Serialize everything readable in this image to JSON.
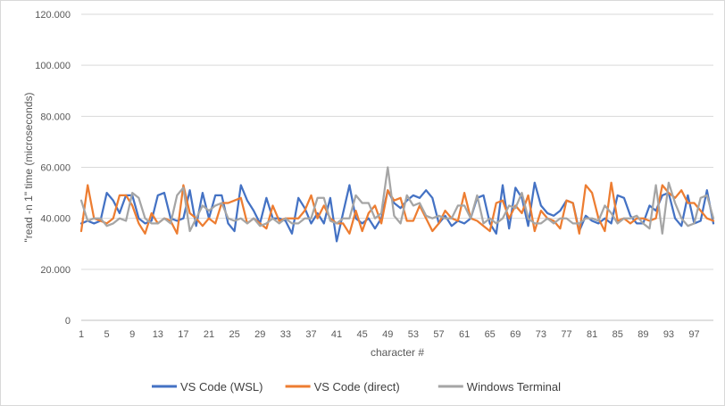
{
  "chart_data": {
    "type": "line",
    "xlabel": "character #",
    "ylabel": "\"read -n 1\" time (microseconds)",
    "ylim": [
      0,
      120000
    ],
    "yticks": [
      "0",
      "20.000",
      "40.000",
      "60.000",
      "80.000",
      "100.000",
      "120.000"
    ],
    "ytick_values": [
      0,
      20000,
      40000,
      60000,
      80000,
      100000,
      120000
    ],
    "x": [
      1,
      2,
      3,
      4,
      5,
      6,
      7,
      8,
      9,
      10,
      11,
      12,
      13,
      14,
      15,
      16,
      17,
      18,
      19,
      20,
      21,
      22,
      23,
      24,
      25,
      26,
      27,
      28,
      29,
      30,
      31,
      32,
      33,
      34,
      35,
      36,
      37,
      38,
      39,
      40,
      41,
      42,
      43,
      44,
      45,
      46,
      47,
      48,
      49,
      50,
      51,
      52,
      53,
      54,
      55,
      56,
      57,
      58,
      59,
      60,
      61,
      62,
      63,
      64,
      65,
      66,
      67,
      68,
      69,
      70,
      71,
      72,
      73,
      74,
      75,
      76,
      77,
      78,
      79,
      80,
      81,
      82,
      83,
      84,
      85,
      86,
      87,
      88,
      89,
      90,
      91,
      92,
      93,
      94,
      95,
      96,
      97,
      98,
      99,
      100
    ],
    "xticks": [
      1,
      5,
      9,
      13,
      17,
      21,
      25,
      29,
      33,
      37,
      41,
      45,
      49,
      53,
      57,
      61,
      65,
      69,
      73,
      77,
      81,
      85,
      89,
      93,
      97
    ],
    "grid": true,
    "legend_position": "bottom",
    "series": [
      {
        "name": "VS Code (WSL)",
        "color": "#4472C4",
        "values": [
          38000,
          39000,
          38000,
          39000,
          50000,
          47000,
          42000,
          49000,
          49000,
          40000,
          38000,
          39000,
          49000,
          50000,
          40000,
          39000,
          40000,
          51000,
          37000,
          50000,
          40000,
          49000,
          49000,
          38000,
          35000,
          53000,
          47000,
          43000,
          38000,
          48000,
          40000,
          40000,
          39000,
          34000,
          48000,
          44000,
          38000,
          42000,
          38000,
          48000,
          31000,
          42000,
          53000,
          40000,
          38000,
          40000,
          36000,
          40000,
          51000,
          46000,
          44000,
          47000,
          49000,
          48000,
          51000,
          48000,
          38000,
          41000,
          37000,
          39000,
          38000,
          40000,
          48000,
          49000,
          38000,
          34000,
          53000,
          36000,
          52000,
          48000,
          37000,
          54000,
          45000,
          42000,
          41000,
          43000,
          47000,
          46000,
          35000,
          41000,
          39000,
          38000,
          40000,
          38000,
          49000,
          48000,
          41000,
          38000,
          38000,
          45000,
          43000,
          49000,
          50000,
          40000,
          37000,
          49000,
          38000,
          39000,
          51000,
          38000
        ]
      },
      {
        "name": "VS Code (direct)",
        "color": "#ED7D31",
        "values": [
          35000,
          53000,
          40000,
          39000,
          38000,
          40000,
          49000,
          49000,
          45000,
          38000,
          34000,
          42000,
          38000,
          40000,
          39000,
          34000,
          53000,
          42000,
          40000,
          37000,
          40000,
          38000,
          46000,
          46000,
          47000,
          48000,
          38000,
          40000,
          38000,
          36000,
          45000,
          39000,
          40000,
          40000,
          40000,
          43000,
          49000,
          40000,
          45000,
          40000,
          38000,
          38000,
          34000,
          43000,
          35000,
          42000,
          45000,
          38000,
          51000,
          47000,
          48000,
          39000,
          39000,
          45000,
          40000,
          35000,
          38000,
          43000,
          40000,
          39000,
          50000,
          40000,
          39000,
          37000,
          35000,
          46000,
          47000,
          40000,
          45000,
          42000,
          49000,
          35000,
          43000,
          40000,
          39000,
          36000,
          47000,
          46000,
          34000,
          53000,
          50000,
          40000,
          35000,
          54000,
          39000,
          40000,
          38000,
          40000,
          40000,
          39000,
          40000,
          53000,
          50000,
          48000,
          51000,
          46000,
          46000,
          43000,
          40000,
          39000
        ]
      },
      {
        "name": "Windows Terminal",
        "color": "#A5A5A5",
        "values": [
          47000,
          39000,
          40000,
          40000,
          37000,
          38000,
          40000,
          39000,
          50000,
          48000,
          40000,
          38000,
          38000,
          40000,
          38000,
          49000,
          52000,
          35000,
          40000,
          45000,
          43000,
          45000,
          46000,
          40000,
          39000,
          40000,
          38000,
          40000,
          37000,
          38000,
          40000,
          38000,
          40000,
          38000,
          38000,
          40000,
          40000,
          48000,
          48000,
          39000,
          38000,
          40000,
          40000,
          49000,
          46000,
          46000,
          40000,
          42000,
          60000,
          41000,
          38000,
          49000,
          45000,
          46000,
          41000,
          40000,
          41000,
          40000,
          40000,
          45000,
          45000,
          40000,
          49000,
          38000,
          40000,
          38000,
          40000,
          45000,
          44000,
          50000,
          40000,
          38000,
          38000,
          40000,
          38000,
          40000,
          40000,
          38000,
          38000,
          40000,
          40000,
          39000,
          45000,
          42000,
          38000,
          40000,
          40000,
          41000,
          38000,
          36000,
          53000,
          34000,
          54000,
          46000,
          40000,
          37000,
          38000,
          48000,
          49000,
          40000
        ]
      }
    ]
  }
}
